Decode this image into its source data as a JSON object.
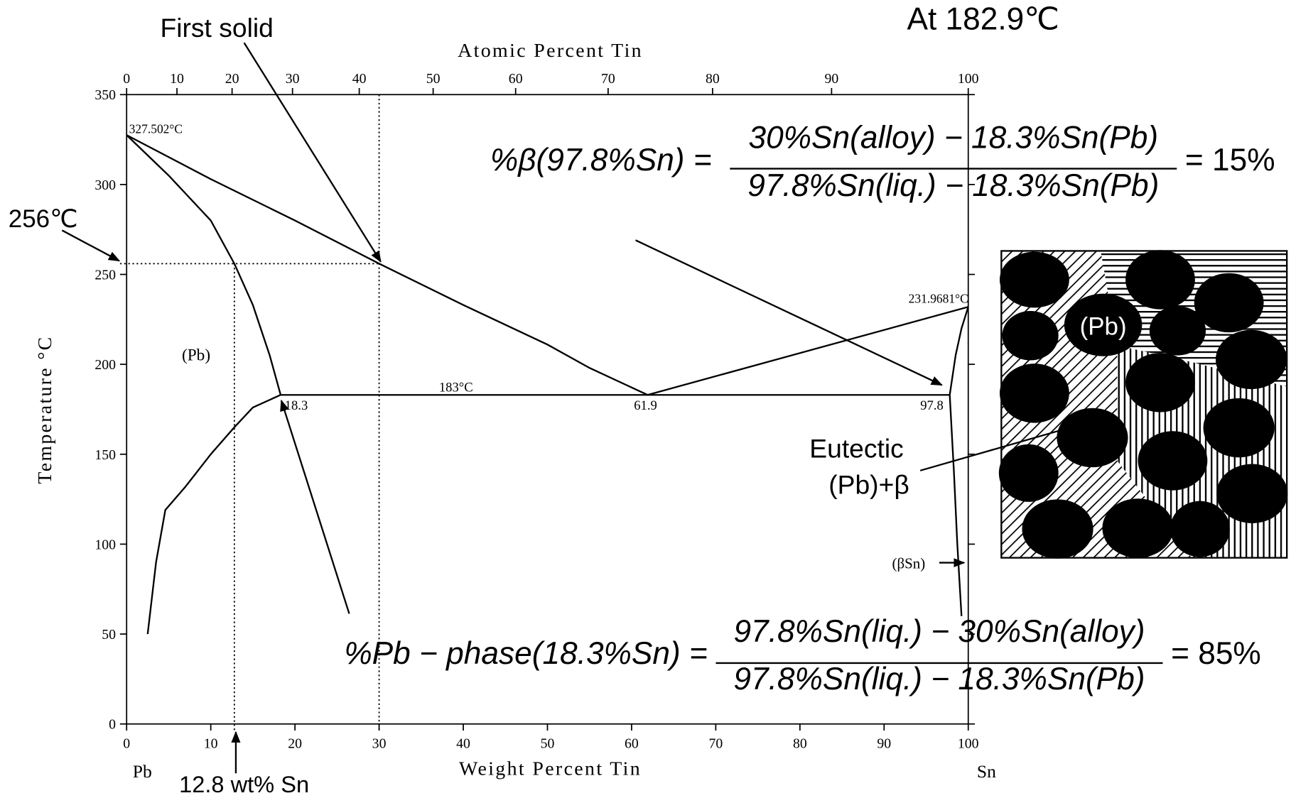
{
  "chart_data": {
    "type": "line",
    "xlabel": "Weight Percent Tin",
    "x2label": "Atomic Percent Tin",
    "ylabel": "Temperature °C",
    "xlim": [
      0,
      100
    ],
    "ylim": [
      0,
      350
    ],
    "xticks": [
      0,
      10,
      20,
      30,
      40,
      50,
      60,
      70,
      80,
      90,
      100
    ],
    "yticks": [
      0,
      50,
      100,
      150,
      200,
      250,
      300,
      350
    ],
    "x2ticks": [
      {
        "value": 0,
        "label": "0"
      },
      {
        "value": 5.98,
        "label": "10"
      },
      {
        "value": 12.53,
        "label": "20"
      },
      {
        "value": 19.71,
        "label": "30"
      },
      {
        "value": 27.64,
        "label": "40"
      },
      {
        "value": 36.42,
        "label": "50"
      },
      {
        "value": 46.22,
        "label": "60"
      },
      {
        "value": 57.21,
        "label": "70"
      },
      {
        "value": 69.62,
        "label": "80"
      },
      {
        "value": 83.76,
        "label": "90"
      },
      {
        "value": 100,
        "label": "100"
      }
    ],
    "series": [
      {
        "color": "#000000",
        "x": [
          0,
          10,
          20,
          30,
          40,
          50,
          55,
          61.9
        ],
        "values": [
          327.502,
          303,
          280,
          256,
          233,
          211,
          198,
          183
        ]
      },
      {
        "color": "#000000",
        "x": [
          0,
          5,
          10,
          12.8,
          15,
          17,
          18.3
        ],
        "values": [
          327.502,
          305,
          280,
          256,
          233,
          205,
          183
        ]
      },
      {
        "color": "#000000",
        "x": [
          18.3,
          15,
          12.8,
          10,
          7,
          4.6,
          3.5,
          2.5
        ],
        "values": [
          183,
          176,
          165,
          150,
          132,
          119,
          90,
          50
        ]
      },
      {
        "color": "#000000",
        "x": [
          18.3,
          97.8
        ],
        "values": [
          183,
          183
        ]
      },
      {
        "color": "#000000",
        "x": [
          61.9,
          100
        ],
        "values": [
          183,
          231.9681
        ]
      },
      {
        "color": "#000000",
        "x": [
          97.8,
          98.5,
          99.2,
          100
        ],
        "values": [
          183,
          205,
          220,
          231.9681
        ]
      },
      {
        "color": "#000000",
        "x": [
          97.8,
          98.3,
          98.7,
          99.2
        ],
        "values": [
          183,
          140,
          100,
          60
        ]
      }
    ],
    "guides": {
      "x": [
        30,
        12.8
      ],
      "y": [
        256
      ]
    },
    "annotations": {
      "title": "At 182.9℃",
      "first_solid": "First solid",
      "temp_256": "256℃",
      "comp_128": "12.8 wt% Sn",
      "pb_melt": "327.502°C",
      "sn_melt": "231.9681°C",
      "eutectic_t": "183°C",
      "c1": "18.3",
      "c2": "61.9",
      "c3": "97.8",
      "pb_phase": "(Pb)",
      "bsn_phase": "(βSn)",
      "pb_end": "Pb",
      "sn_end": "Sn",
      "eutectic_1": "Eutectic",
      "eutectic_2": "(Pb)+β",
      "micro_pb": "(Pb)"
    },
    "equations": [
      {
        "lhs": "%β(97.8%Sn) =",
        "numerator": "30%Sn(alloy) − 18.3%Sn(Pb)",
        "denominator": "97.8%Sn(liq.) − 18.3%Sn(Pb)",
        "result": "= 15%"
      },
      {
        "lhs": "%Pb − phase(18.3%Sn) =",
        "numerator": "97.8%Sn(liq.) − 30%Sn(alloy)",
        "denominator": "97.8%Sn(liq.) − 18.3%Sn(Pb)",
        "result": "= 85%"
      }
    ]
  }
}
